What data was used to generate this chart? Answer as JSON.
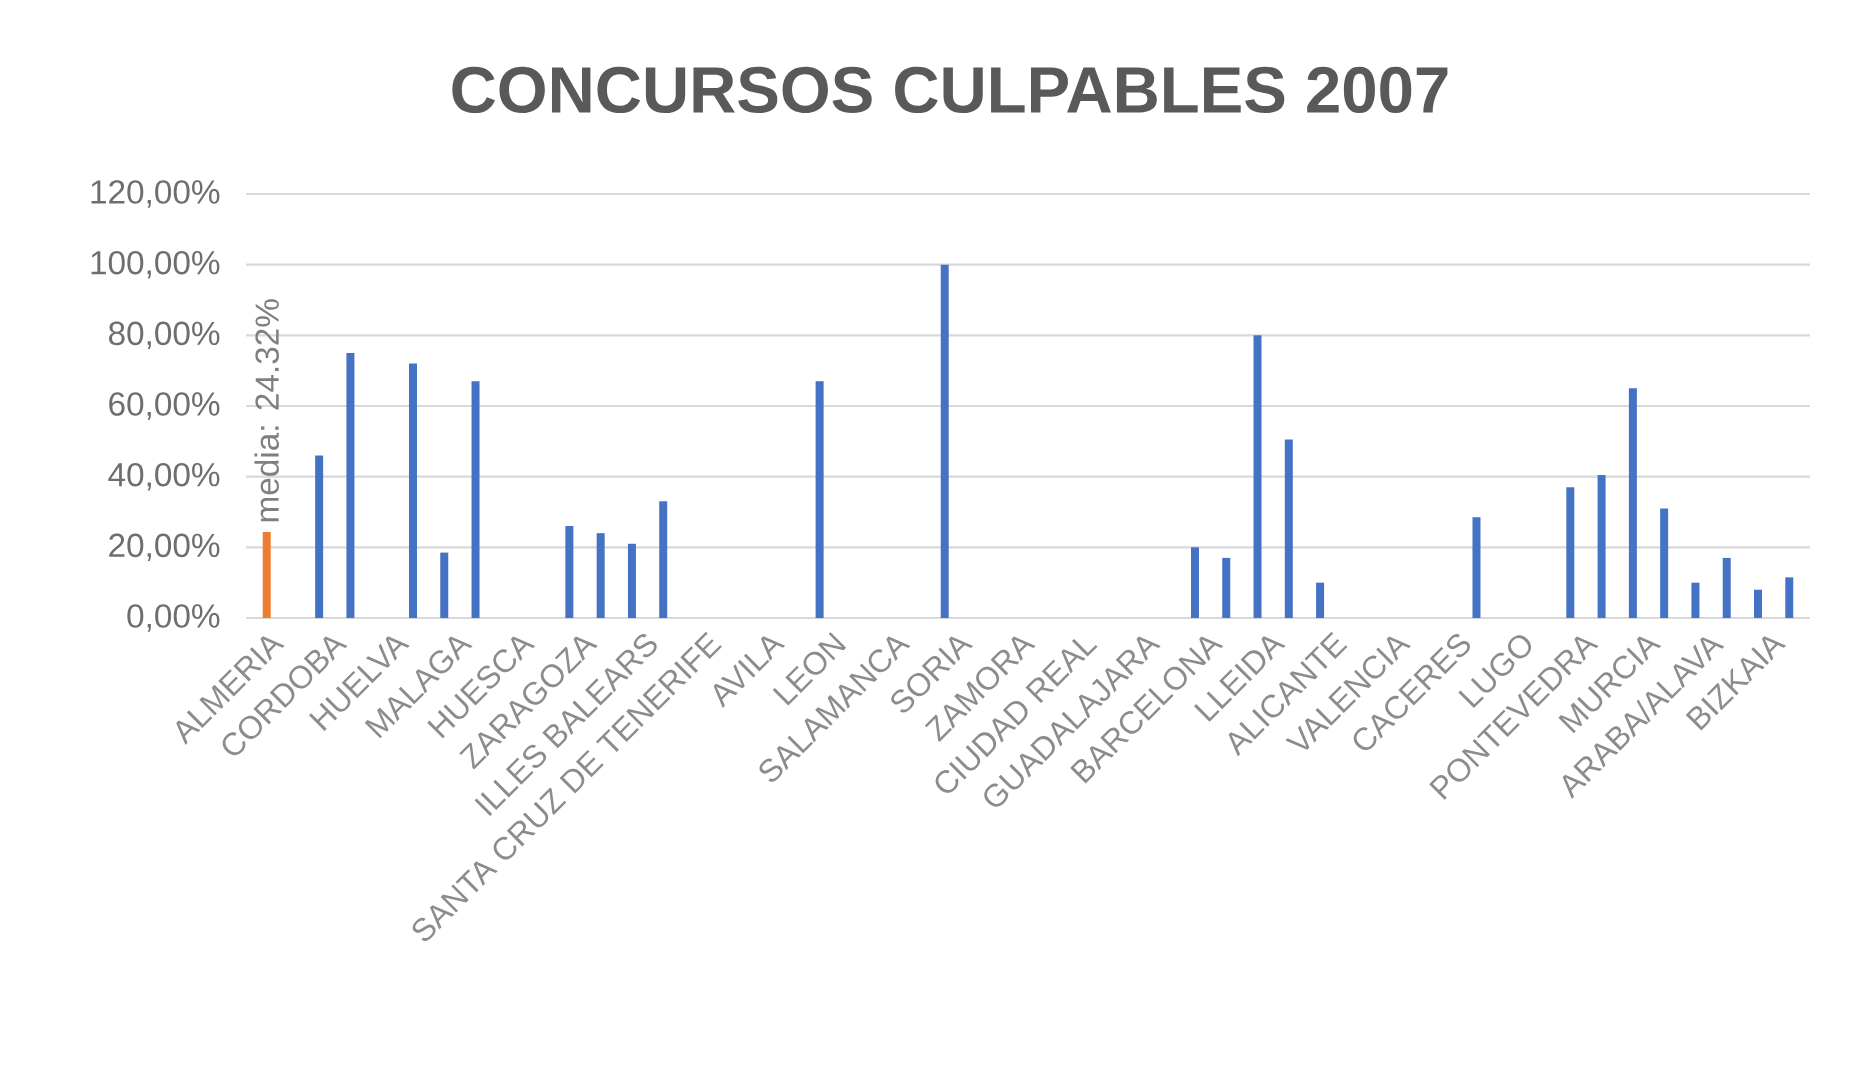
{
  "chart_data": {
    "type": "bar",
    "title": "CONCURSOS CULPABLES 2007",
    "categories": [
      "ALMERIA",
      null,
      "CORDOBA",
      null,
      "HUELVA",
      null,
      "MALAGA",
      null,
      "HUESCA",
      null,
      "ZARAGOZA",
      null,
      "ILLES BALEARS",
      null,
      "SANTA CRUZ DE TENERIFE",
      null,
      "AVILA",
      null,
      "LEON",
      null,
      "SALAMANCA",
      null,
      "SORIA",
      null,
      "ZAMORA",
      null,
      "CIUDAD REAL",
      null,
      "GUADALAJARA",
      null,
      "BARCELONA",
      null,
      "LLEIDA",
      null,
      "ALICANTE",
      null,
      "VALENCIA",
      null,
      "CACERES",
      null,
      "LUGO",
      null,
      "PONTEVEDRA",
      null,
      "MURCIA",
      null,
      "ARABA/ALAVA",
      null,
      "BIZKAIA",
      null
    ],
    "series": [
      {
        "color": "#4472c4",
        "values": [
          null,
          null,
          46,
          75,
          null,
          72,
          18.5,
          67,
          null,
          null,
          26,
          24,
          21,
          33,
          null,
          null,
          null,
          null,
          67,
          null,
          null,
          null,
          100,
          null,
          null,
          null,
          null,
          null,
          null,
          null,
          20,
          17,
          80,
          50.5,
          10,
          null,
          null,
          null,
          null,
          28.5,
          null,
          null,
          37,
          40.5,
          65,
          31,
          10,
          17,
          8,
          11.5
        ]
      },
      {
        "color": "#ed7d31",
        "values": [
          24.32,
          null,
          null,
          null,
          null,
          null,
          null,
          null,
          null,
          null,
          null,
          null,
          null,
          null,
          null,
          null,
          null,
          null,
          null,
          null,
          null,
          null,
          null,
          null,
          null,
          null,
          null,
          null,
          null,
          null,
          null,
          null,
          null,
          null,
          null,
          null,
          null,
          null,
          null,
          null,
          null,
          null,
          null,
          null,
          null,
          null,
          null,
          null,
          null,
          null
        ],
        "value_labels": [
          "media: 24.32%",
          null,
          null,
          null,
          null,
          null,
          null,
          null,
          null,
          null,
          null,
          null,
          null,
          null,
          null,
          null,
          null,
          null,
          null,
          null,
          null,
          null,
          null,
          null,
          null,
          null,
          null,
          null,
          null,
          null,
          null,
          null,
          null,
          null,
          null,
          null,
          null,
          null,
          null,
          null,
          null,
          null,
          null,
          null,
          null,
          null,
          null,
          null,
          null,
          null
        ]
      }
    ],
    "ylim": [
      0,
      120
    ],
    "yticks": [
      {
        "value": 0,
        "label": "0,00%"
      },
      {
        "value": 20,
        "label": "20,00%"
      },
      {
        "value": 40,
        "label": "40,00%"
      },
      {
        "value": 60,
        "label": "60,00%"
      },
      {
        "value": 80,
        "label": "80,00%"
      },
      {
        "value": 100,
        "label": "100,00%"
      },
      {
        "value": 120,
        "label": "120,00%"
      }
    ],
    "grid": "y"
  }
}
